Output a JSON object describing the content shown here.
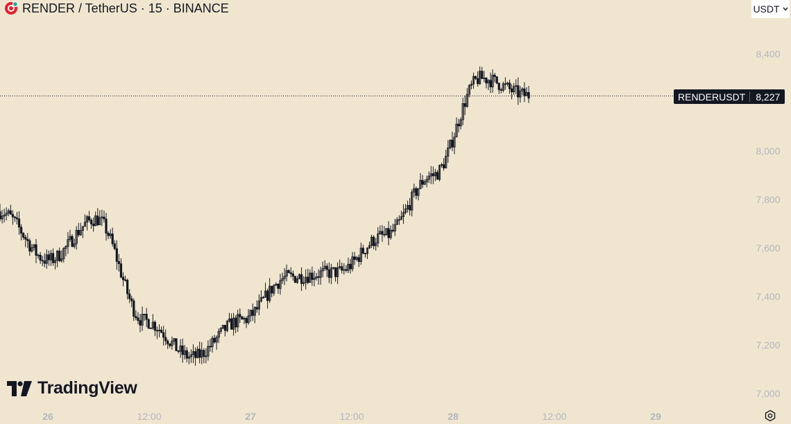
{
  "header": {
    "title": "RENDER / TetherUS · 15 · BINANCE",
    "logo_icon": "render-logo-icon"
  },
  "currency_selector": {
    "label": "USDT"
  },
  "last_price": {
    "symbol": "RENDERUSDT",
    "value": "8,227",
    "raw": 8.227
  },
  "branding": {
    "name": "TradingView"
  },
  "settings": {
    "icon": "settings-icon"
  },
  "colors": {
    "background": "#f0e6d0",
    "candle": "#131722",
    "axis_text": "#b2b5be"
  },
  "chart_data": {
    "type": "candlestick",
    "title": "RENDER / TetherUS · 15 · BINANCE",
    "x_ticks": [
      "26",
      "12:00",
      "27",
      "12:00",
      "28",
      "12:00",
      "29"
    ],
    "y_ticks": [
      "8,400",
      "8,000",
      "7,800",
      "7,600",
      "7,400",
      "7,200",
      "7,000"
    ],
    "ylim": [
      7.0,
      8.5
    ],
    "grid": false,
    "series": [
      {
        "x": [
          "25 18:00",
          "26 00:00",
          "26 06:00",
          "26 12:00",
          "26 18:00",
          "27 00:00",
          "27 06:00",
          "27 12:00",
          "27 18:00",
          "28 00:00",
          "28 06:00",
          "28 12:00"
        ],
        "values": [
          7.75,
          7.55,
          7.72,
          7.3,
          7.15,
          7.3,
          7.48,
          7.5,
          7.65,
          7.9,
          8.3,
          8.23
        ]
      }
    ],
    "last_value": 8.227
  }
}
